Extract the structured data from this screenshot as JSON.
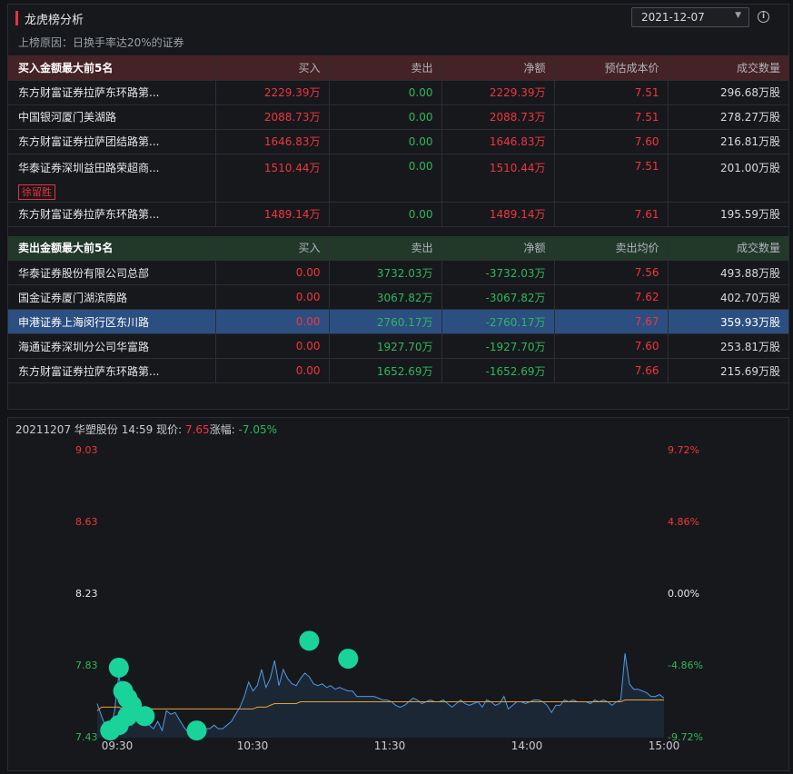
{
  "panel": {
    "title": "龙虎榜分析",
    "date": "2021-12-07",
    "reason": "上榜原因：日换手率达20%的证券"
  },
  "buy": {
    "header": [
      "买入金额最大前5名",
      "买入",
      "卖出",
      "净额",
      "预估成本价",
      "成交数量"
    ],
    "rows": [
      {
        "name": "东方财富证券拉萨东环路第...",
        "buy": "2229.39万",
        "sell": "0.00",
        "net": "2229.39万",
        "price": "7.51",
        "volume": "296.68万股"
      },
      {
        "name": "中国银河厦门美湖路",
        "buy": "2088.73万",
        "sell": "0.00",
        "net": "2088.73万",
        "price": "7.51",
        "volume": "278.27万股"
      },
      {
        "name": "东方财富证券拉萨团结路第...",
        "buy": "1646.83万",
        "sell": "0.00",
        "net": "1646.83万",
        "price": "7.60",
        "volume": "216.81万股"
      },
      {
        "name": "华泰证券深圳益田路荣超商...",
        "tag": "徐留胜",
        "buy": "1510.44万",
        "sell": "0.00",
        "net": "1510.44万",
        "price": "7.51",
        "volume": "201.00万股"
      },
      {
        "name": "东方财富证券拉萨东环路第...",
        "buy": "1489.14万",
        "sell": "0.00",
        "net": "1489.14万",
        "price": "7.61",
        "volume": "195.59万股"
      }
    ]
  },
  "sell": {
    "header": [
      "卖出金额最大前5名",
      "买入",
      "卖出",
      "净额",
      "卖出均价",
      "成交数量"
    ],
    "rows": [
      {
        "name": "华泰证券股份有限公司总部",
        "buy": "0.00",
        "sell": "3732.03万",
        "net": "-3732.03万",
        "price": "7.56",
        "volume": "493.88万股"
      },
      {
        "name": "国金证券厦门湖滨南路",
        "buy": "0.00",
        "sell": "3067.82万",
        "net": "-3067.82万",
        "price": "7.62",
        "volume": "402.70万股"
      },
      {
        "name": "申港证券上海闵行区东川路",
        "buy": "0.00",
        "sell": "2760.17万",
        "net": "-2760.17万",
        "price": "7.67",
        "volume": "359.93万股"
      },
      {
        "name": "海通证券深圳分公司华富路",
        "buy": "0.00",
        "sell": "1927.70万",
        "net": "-1927.70万",
        "price": "7.60",
        "volume": "253.81万股"
      },
      {
        "name": "东方财富证券拉萨东环路第...",
        "buy": "0.00",
        "sell": "1652.69万",
        "net": "-1652.69万",
        "price": "7.66",
        "volume": "215.69万股"
      }
    ]
  },
  "chart": {
    "head_prefix": "20211207 华塑股份 14:59 现价: ",
    "price": "7.65",
    "change_label": "涨幅: ",
    "change": "-7.05%",
    "left_axis": [
      "9.03",
      "8.63",
      "8.23",
      "7.83",
      "7.43"
    ],
    "right_axis": [
      "9.72%",
      "4.86%",
      "0.00%",
      "-4.86%",
      "-9.72%"
    ],
    "x_axis": [
      "09:30",
      "10:30",
      "11:30",
      "14:00",
      "15:00"
    ],
    "colors": {
      "up": "#f2343f",
      "down": "#2eb85c",
      "flat": "#e6e8eb",
      "price_line": "#4d9be6",
      "avg_line": "#e8a234",
      "marker": "#19d39a"
    }
  },
  "chart_data": {
    "type": "line",
    "title": "",
    "xlabel": "",
    "ylabel": "",
    "ylim": [
      7.43,
      9.03
    ],
    "x_ticks": [
      "09:30",
      "10:30",
      "11:30",
      "14:00",
      "15:00"
    ],
    "series": [
      {
        "values": [
          7.62,
          7.55,
          7.49,
          7.46,
          7.58,
          7.78,
          7.63,
          7.55,
          7.5,
          7.58,
          7.6,
          7.55,
          7.5,
          7.48,
          7.52,
          7.47,
          7.58,
          7.56,
          7.57,
          7.53,
          7.49,
          7.46,
          7.47,
          7.45,
          7.47,
          7.48,
          7.48,
          7.5,
          7.48,
          7.48,
          7.5,
          7.52,
          7.56,
          7.6,
          7.66,
          7.74,
          7.69,
          7.72,
          7.81,
          7.71,
          7.76,
          7.86,
          7.72,
          7.81,
          7.76,
          7.73,
          7.72,
          7.76,
          7.79,
          7.77,
          7.73,
          7.72,
          7.73,
          7.71,
          7.72,
          7.7,
          7.71,
          7.7,
          7.69,
          7.69,
          7.66,
          7.66,
          7.66,
          7.66,
          7.66,
          7.65,
          7.64,
          7.64,
          7.63,
          7.61,
          7.6,
          7.61,
          7.63,
          7.65,
          7.64,
          7.62,
          7.63,
          7.64,
          7.63,
          7.63,
          7.64,
          7.62,
          7.6,
          7.62,
          7.64,
          7.62,
          7.61,
          7.62,
          7.63,
          7.6,
          7.64,
          7.63,
          7.61,
          7.62,
          7.66,
          7.59,
          7.61,
          7.63,
          7.63,
          7.62,
          7.63,
          7.64,
          7.64,
          7.63,
          7.61,
          7.57,
          7.61,
          7.61,
          7.64,
          7.63,
          7.64,
          7.63,
          7.63,
          7.63,
          7.62,
          7.64,
          7.63,
          7.64,
          7.63,
          7.61,
          7.63,
          7.64,
          7.9,
          7.73,
          7.7,
          7.7,
          7.69,
          7.68,
          7.66,
          7.66,
          7.67,
          7.65
        ]
      },
      {
        "values": [
          7.58,
          7.6,
          7.6,
          7.6,
          7.6,
          7.6,
          7.59,
          7.59,
          7.59,
          7.59,
          7.59,
          7.59,
          7.59,
          7.59,
          7.59,
          7.59,
          7.59,
          7.59,
          7.59,
          7.59,
          7.59,
          7.59,
          7.59,
          7.59,
          7.59,
          7.59,
          7.59,
          7.59,
          7.59,
          7.59,
          7.59,
          7.59,
          7.59,
          7.59,
          7.59,
          7.59,
          7.59,
          7.6,
          7.6,
          7.6,
          7.61,
          7.62,
          7.62,
          7.62,
          7.62,
          7.62,
          7.62,
          7.63,
          7.63,
          7.63,
          7.63,
          7.63,
          7.63,
          7.63,
          7.63,
          7.63,
          7.63,
          7.63,
          7.63,
          7.63,
          7.63,
          7.63,
          7.63,
          7.63,
          7.63,
          7.63,
          7.63,
          7.63,
          7.63,
          7.63,
          7.63,
          7.63,
          7.63,
          7.63,
          7.63,
          7.63,
          7.63,
          7.63,
          7.63,
          7.63,
          7.63,
          7.63,
          7.63,
          7.63,
          7.63,
          7.63,
          7.63,
          7.63,
          7.63,
          7.63,
          7.63,
          7.63,
          7.63,
          7.63,
          7.63,
          7.63,
          7.63,
          7.63,
          7.63,
          7.63,
          7.63,
          7.63,
          7.63,
          7.63,
          7.63,
          7.63,
          7.63,
          7.63,
          7.63,
          7.63,
          7.63,
          7.63,
          7.63,
          7.63,
          7.63,
          7.63,
          7.63,
          7.63,
          7.63,
          7.63,
          7.63,
          7.63,
          7.64,
          7.64,
          7.64,
          7.64,
          7.64,
          7.64,
          7.64,
          7.64,
          7.64,
          7.64
        ]
      }
    ],
    "markers": [
      {
        "x_index": 5,
        "value": 7.82
      },
      {
        "x_index": 6,
        "value": 7.69
      },
      {
        "x_index": 7,
        "value": 7.65
      },
      {
        "x_index": 8,
        "value": 7.61
      },
      {
        "x_index": 7,
        "value": 7.55
      },
      {
        "x_index": 3,
        "value": 7.47
      },
      {
        "x_index": 5,
        "value": 7.5
      },
      {
        "x_index": 11,
        "value": 7.55
      },
      {
        "x_index": 23,
        "value": 7.47
      },
      {
        "x_index": 49,
        "value": 7.97
      },
      {
        "x_index": 58,
        "value": 7.87
      }
    ],
    "grid": false
  }
}
